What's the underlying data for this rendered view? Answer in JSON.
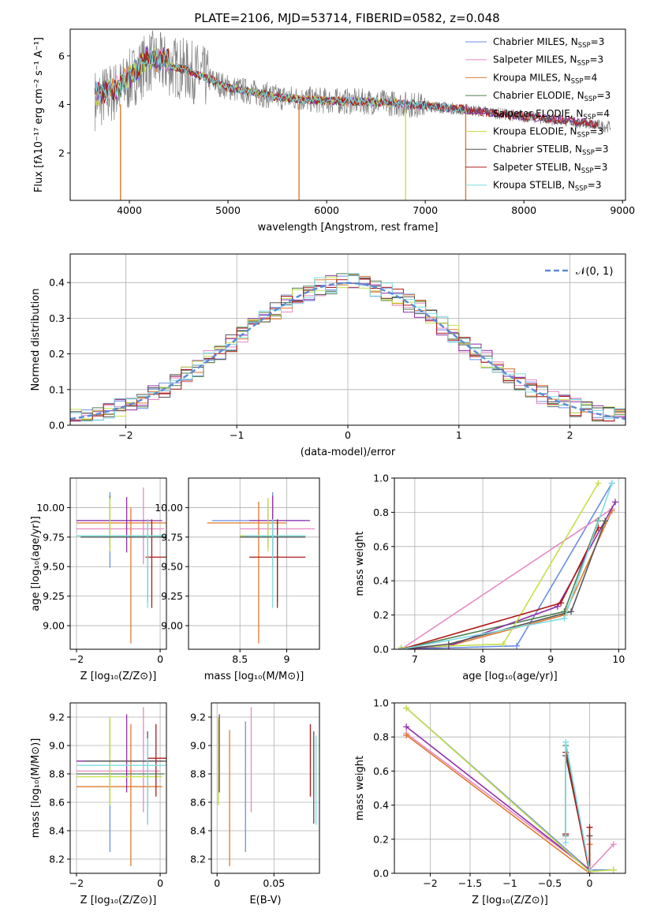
{
  "figure_title": "PLATE=2106, MJD=53714, FIBERID=0582, z=0.048",
  "models": [
    {
      "label": "Chabrier MILES, N",
      "n": "=3",
      "color": "#6b8ee6"
    },
    {
      "label": "Salpeter MILES, N",
      "n": "=3",
      "color": "#e68ac5"
    },
    {
      "label": "Kroupa MILES, N",
      "n": "=4",
      "color": "#e07b2e"
    },
    {
      "label": "Chabrier ELODIE, N",
      "n": "=3",
      "color": "#4f7f4f"
    },
    {
      "label": "Salpeter ELODIE, N",
      "n": "=4",
      "color": "#8e2fa8"
    },
    {
      "label": "Kroupa ELODIE, N",
      "n": "=3",
      "color": "#c6e04a"
    },
    {
      "label": "Chabrier STELIB, N",
      "n": "=3",
      "color": "#555555"
    },
    {
      "label": "Salpeter STELIB, N",
      "n": "=3",
      "color": "#b01a1a"
    },
    {
      "label": "Kroupa STELIB, N",
      "n": "=3",
      "color": "#7ddde3"
    }
  ],
  "ssp_subscript": "SSP",
  "chart_data": [
    {
      "type": "line",
      "id": "spectrum",
      "xlabel": "wavelength [Angstrom, rest frame]",
      "ylabel": "Flux [fλ10⁻¹⁷ erg cm⁻² s⁻¹ A⁻¹]",
      "xlim": [
        3400,
        9030
      ],
      "ylim": [
        0.05,
        7.1
      ],
      "xticks": [
        4000,
        5000,
        6000,
        7000,
        8000,
        9000
      ],
      "yticks": [
        2,
        4,
        6
      ],
      "data_color": "#808080",
      "continuum": {
        "x": [
          3650,
          3900,
          4200,
          4600,
          5000,
          5500,
          6000,
          6500,
          7000,
          7500,
          8000,
          8500,
          8800
        ],
        "y": [
          4.2,
          4.6,
          5.8,
          5.4,
          4.7,
          4.3,
          4.15,
          4.1,
          3.95,
          3.75,
          3.5,
          3.3,
          3.1
        ]
      },
      "data_xmin": 3650,
      "data_xmax": 8880,
      "model_xmax": [
        7420,
        7420,
        7420,
        7420,
        8750,
        6750,
        8750,
        8750,
        7420
      ],
      "drops": [
        {
          "x": 3910,
          "color": "#e07b2e"
        },
        {
          "x": 5720,
          "color": "#e07b2e"
        },
        {
          "x": 6800,
          "color": "#c6e04a"
        },
        {
          "x": 7410,
          "color": "#e07b2e"
        }
      ]
    },
    {
      "type": "line",
      "id": "residuals",
      "xlabel": "(data-model)/error",
      "ylabel": "Normed distribution",
      "xlim": [
        -2.5,
        2.5
      ],
      "ylim": [
        0,
        0.48
      ],
      "xticks": [
        -2,
        -1,
        0,
        1,
        2
      ],
      "yticks": [
        0.0,
        0.1,
        0.2,
        0.3,
        0.4
      ],
      "legend": "𝒩(0, 1)",
      "normal_color": "#5b8bd6",
      "bin_width": 0.1
    },
    {
      "type": "scatter",
      "id": "age-vs-Z",
      "xlabel": "Z [log₁₀(Z/Z⊙)]",
      "ylabel": "age  [log₁₀(age/yr)]",
      "xlim": [
        -2.15,
        0.15
      ],
      "ylim": [
        8.8,
        10.25
      ],
      "xticks": [
        -2,
        0
      ],
      "yticks": [
        9.0,
        9.25,
        9.5,
        9.75,
        10.0
      ],
      "points": [
        {
          "x": -1.2,
          "y": 9.89,
          "xe": [
            -2.0,
            -0.3
          ],
          "ye": [
            9.49,
            10.13
          ]
        },
        {
          "x": -0.4,
          "y": 9.82,
          "xe": [
            -2.0,
            0.1
          ],
          "ye": [
            9.52,
            10.17
          ]
        },
        {
          "x": -0.7,
          "y": 9.87,
          "xe": [
            -2.0,
            0.2
          ],
          "ye": [
            8.85,
            10.0
          ]
        },
        {
          "x": -1.2,
          "y": 9.76,
          "xe": [
            -2.0,
            0.1
          ],
          "ye": [
            9.66,
            10.1
          ]
        },
        {
          "x": -0.8,
          "y": 9.89,
          "xe": [
            -2.0,
            0.05
          ],
          "ye": [
            9.62,
            10.09
          ]
        },
        {
          "x": -1.2,
          "y": 9.76,
          "xe": [
            -2.0,
            0.1
          ],
          "ye": [
            9.63,
            10.08
          ]
        },
        {
          "x": -0.3,
          "y": 9.75,
          "xe": [
            -1.9,
            0.25
          ],
          "ye": [
            9.2,
            9.9
          ]
        },
        {
          "x": -0.2,
          "y": 9.58,
          "xe": [
            -0.35,
            0.2
          ],
          "ye": [
            9.15,
            9.9
          ]
        },
        {
          "x": -0.3,
          "y": 9.76,
          "xe": [
            -2.0,
            0.25
          ],
          "ye": [
            9.15,
            9.9
          ]
        }
      ]
    },
    {
      "type": "scatter",
      "id": "age-vs-mass",
      "xlabel": "mass [log₁₀(M/M⊙)]",
      "ylabel": "",
      "xlim": [
        7.95,
        9.35
      ],
      "ylim": [
        8.8,
        10.25
      ],
      "xticks": [
        8.5,
        9.0
      ],
      "yticks": [
        9.0,
        9.25,
        9.5,
        9.75,
        10.0
      ],
      "points": [
        {
          "x": 8.85,
          "y": 9.89,
          "xe": [
            8.2,
            9.2
          ],
          "ye": [
            9.5,
            10.13
          ]
        },
        {
          "x": 8.85,
          "y": 9.82,
          "xe": [
            8.5,
            9.3
          ],
          "ye": [
            9.52,
            10.1
          ]
        },
        {
          "x": 8.7,
          "y": 9.87,
          "xe": [
            8.15,
            9.0
          ],
          "ye": [
            8.85,
            10.05
          ]
        },
        {
          "x": 8.8,
          "y": 9.76,
          "xe": [
            8.5,
            9.2
          ],
          "ye": [
            9.66,
            10.08
          ]
        },
        {
          "x": 8.85,
          "y": 9.89,
          "xe": [
            8.6,
            9.25
          ],
          "ye": [
            9.6,
            10.1
          ]
        },
        {
          "x": 8.8,
          "y": 9.76,
          "xe": [
            8.5,
            9.2
          ],
          "ye": [
            9.63,
            10.08
          ]
        },
        {
          "x": 8.9,
          "y": 9.75,
          "xe": [
            8.5,
            9.2
          ],
          "ye": [
            9.2,
            9.9
          ]
        },
        {
          "x": 8.9,
          "y": 9.58,
          "xe": [
            8.6,
            9.2
          ],
          "ye": [
            9.15,
            9.9
          ]
        },
        {
          "x": 8.85,
          "y": 9.76,
          "xe": [
            8.55,
            9.2
          ],
          "ye": [
            9.15,
            9.9
          ]
        }
      ]
    },
    {
      "type": "line",
      "id": "massweight-vs-age",
      "xlabel": "age  [log₁₀(age/yr)]",
      "ylabel": "mass weight",
      "xlim": [
        6.7,
        10.1
      ],
      "ylim": [
        0,
        1.0
      ],
      "xticks": [
        7,
        8,
        9,
        10
      ],
      "yticks": [
        0.0,
        0.2,
        0.4,
        0.6,
        0.8,
        1.0
      ],
      "series": [
        {
          "x": [
            6.8,
            8.5,
            9.9
          ],
          "y": [
            0.0,
            0.02,
            0.97
          ]
        },
        {
          "x": [
            6.8,
            9.9
          ],
          "y": [
            0.0,
            0.82
          ]
        },
        {
          "x": [
            6.8,
            7.5,
            9.2,
            9.9
          ],
          "y": [
            0.0,
            0.02,
            0.2,
            0.81
          ]
        },
        {
          "x": [
            6.8,
            9.2,
            9.7
          ],
          "y": [
            0.0,
            0.22,
            0.75
          ]
        },
        {
          "x": [
            6.8,
            7.5,
            9.1,
            9.95
          ],
          "y": [
            0.0,
            0.02,
            0.25,
            0.86
          ]
        },
        {
          "x": [
            6.8,
            8.3,
            9.7
          ],
          "y": [
            0.01,
            0.03,
            0.97
          ]
        },
        {
          "x": [
            6.8,
            7.5,
            9.3,
            9.8
          ],
          "y": [
            0.0,
            0.03,
            0.22,
            0.75
          ]
        },
        {
          "x": [
            6.8,
            9.15,
            9.7
          ],
          "y": [
            0.0,
            0.27,
            0.71
          ]
        },
        {
          "x": [
            6.8,
            9.2,
            9.9
          ],
          "y": [
            0.0,
            0.18,
            0.97
          ]
        }
      ]
    },
    {
      "type": "scatter",
      "id": "mass-vs-Z",
      "xlabel": "Z [log₁₀(Z/Z⊙)]",
      "ylabel": "mass [log₁₀(M/M⊙)]",
      "xlim": [
        -2.15,
        0.15
      ],
      "ylim": [
        8.1,
        9.3
      ],
      "xticks": [
        -2,
        0
      ],
      "yticks": [
        8.2,
        8.4,
        8.6,
        8.8,
        9.0,
        9.2
      ],
      "points": [
        {
          "x": -1.2,
          "y": 8.89,
          "xe": [
            -2.0,
            0.05
          ],
          "ye": [
            8.25,
            9.2
          ]
        },
        {
          "x": -0.4,
          "y": 8.82,
          "xe": [
            -2.0,
            0.0
          ],
          "ye": [
            8.53,
            9.27
          ]
        },
        {
          "x": -0.7,
          "y": 8.71,
          "xe": [
            -2.0,
            0.05
          ],
          "ye": [
            8.15,
            9.15
          ]
        },
        {
          "x": -1.2,
          "y": 8.8,
          "xe": [
            -2.0,
            0.1
          ],
          "ye": [
            8.6,
            9.18
          ]
        },
        {
          "x": -0.8,
          "y": 8.89,
          "xe": [
            -2.0,
            0.05
          ],
          "ye": [
            8.67,
            9.22
          ]
        },
        {
          "x": -1.2,
          "y": 8.78,
          "xe": [
            -2.0,
            0.05
          ],
          "ye": [
            8.58,
            9.2
          ]
        },
        {
          "x": -0.3,
          "y": 8.89,
          "xe": [
            -1.8,
            0.2
          ],
          "ye": [
            8.45,
            9.1
          ]
        },
        {
          "x": -0.1,
          "y": 8.91,
          "xe": [
            -0.3,
            0.2
          ],
          "ye": [
            8.64,
            9.15
          ]
        },
        {
          "x": -0.3,
          "y": 8.86,
          "xe": [
            -2.0,
            0.2
          ],
          "ye": [
            8.44,
            9.05
          ]
        }
      ]
    },
    {
      "type": "scatter",
      "id": "mass-vs-ebv",
      "xlabel": "E(B-V)",
      "ylabel": "",
      "xlim": [
        -0.005,
        0.09
      ],
      "ylim": [
        8.1,
        9.3
      ],
      "xticks": [
        0.0,
        0.05
      ],
      "yticks": [
        8.2,
        8.4,
        8.6,
        8.8,
        9.0,
        9.2
      ],
      "points": [
        {
          "x": 0.025,
          "y": 8.7,
          "xe": [
            0.025,
            0.025
          ],
          "ye": [
            8.25,
            9.17
          ]
        },
        {
          "x": 0.03,
          "y": 8.9,
          "xe": [
            0.03,
            0.03
          ],
          "ye": [
            8.53,
            9.27
          ]
        },
        {
          "x": 0.011,
          "y": 8.6,
          "xe": [
            0.011,
            0.011
          ],
          "ye": [
            8.15,
            9.11
          ]
        },
        {
          "x": 0.001,
          "y": 8.9,
          "xe": [
            0.001,
            0.001
          ],
          "ye": [
            8.58,
            9.18
          ]
        },
        {
          "x": 0.002,
          "y": 9.0,
          "xe": [
            0.002,
            0.002
          ],
          "ye": [
            8.67,
            9.22
          ]
        },
        {
          "x": 0.001,
          "y": 8.9,
          "xe": [
            0.001,
            0.001
          ],
          "ye": [
            8.58,
            9.2
          ]
        },
        {
          "x": 0.085,
          "y": 8.8,
          "xe": [
            0.085,
            0.085
          ],
          "ye": [
            8.45,
            9.1
          ]
        },
        {
          "x": 0.082,
          "y": 8.9,
          "xe": [
            0.082,
            0.082
          ],
          "ye": [
            8.64,
            9.15
          ]
        },
        {
          "x": 0.087,
          "y": 8.8,
          "xe": [
            0.087,
            0.087
          ],
          "ye": [
            8.44,
            9.07
          ]
        }
      ]
    },
    {
      "type": "line",
      "id": "massweight-vs-Z",
      "xlabel": "Z [log₁₀(Z/Z⊙)]",
      "ylabel": "mass weight",
      "xlim": [
        -2.45,
        0.45
      ],
      "ylim": [
        0,
        1.0
      ],
      "xticks": [
        -2.0,
        -1.5,
        -1.0,
        -0.5,
        0.0
      ],
      "yticks": [
        0.0,
        0.2,
        0.4,
        0.6,
        0.8,
        1.0
      ],
      "series": [
        {
          "x": [
            -2.3,
            0.0,
            0.3
          ],
          "y": [
            0.97,
            0.02,
            0.02
          ]
        },
        {
          "x": [
            -2.3,
            0.0,
            0.3
          ],
          "y": [
            0.82,
            0.02,
            0.17
          ]
        },
        {
          "x": [
            -2.3,
            0.0,
            0.0
          ],
          "y": [
            0.81,
            0.0,
            0.17
          ]
        },
        {
          "x": [
            -0.3,
            -0.3,
            0.0
          ],
          "y": [
            0.23,
            0.75,
            0.02
          ]
        },
        {
          "x": [
            -2.3,
            0.0
          ],
          "y": [
            0.86,
            0.02
          ]
        },
        {
          "x": [
            -2.3,
            0.0,
            0.3
          ],
          "y": [
            0.97,
            0.01,
            0.02
          ]
        },
        {
          "x": [
            -0.3,
            -0.3,
            0.0,
            0.0
          ],
          "y": [
            0.22,
            0.69,
            0.02,
            0.22
          ]
        },
        {
          "x": [
            -0.3,
            -0.3,
            0.0,
            0.0
          ],
          "y": [
            0.23,
            0.71,
            0.0,
            0.27
          ]
        },
        {
          "x": [
            -0.3,
            -0.3,
            0.0
          ],
          "y": [
            0.18,
            0.77,
            0.02
          ]
        }
      ]
    }
  ]
}
